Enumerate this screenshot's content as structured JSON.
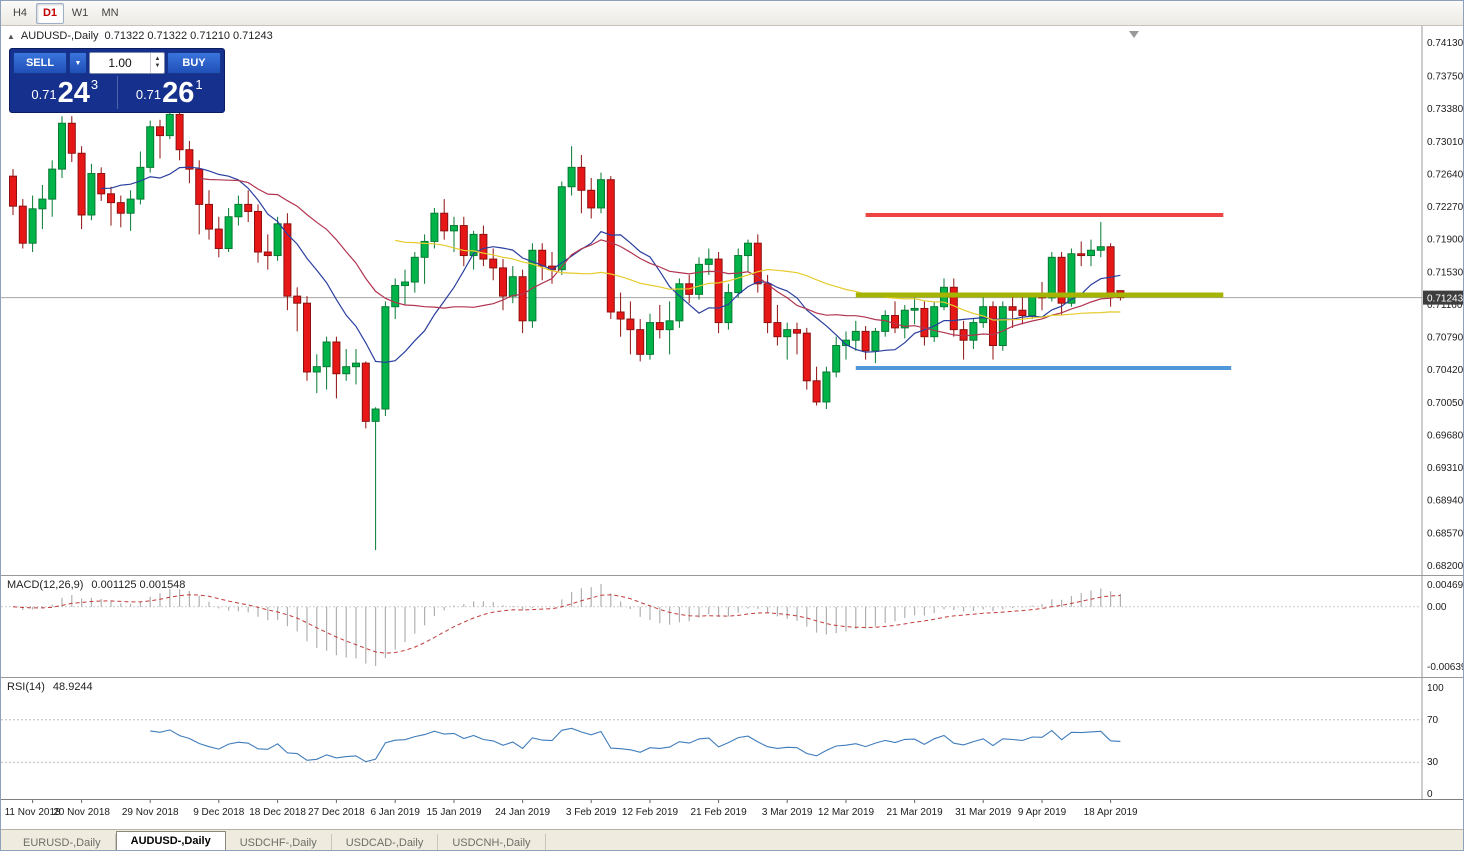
{
  "toolbar": {
    "buttons": [
      {
        "label": "H4",
        "active": false
      },
      {
        "label": "D1",
        "active": true
      },
      {
        "label": "W1",
        "active": false
      },
      {
        "label": "MN",
        "active": false
      }
    ]
  },
  "chart_header": {
    "symbol": "AUDUSD-,Daily",
    "ohlc_text": "0.71322 0.71322 0.71210 0.71243"
  },
  "icons": {
    "symbol_arrow": "▲",
    "dropdown_arrow": "▼",
    "spinner_up": "▲",
    "spinner_down": "▼"
  },
  "trade_panel": {
    "sell_label": "SELL",
    "buy_label": "BUY",
    "volume": "1.00",
    "bid": {
      "prefix": "0.71",
      "big": "24",
      "sup": "3"
    },
    "ask": {
      "prefix": "0.71",
      "big": "26",
      "sup": "1"
    }
  },
  "price_badge": "0.71243",
  "tabs": {
    "items": [
      {
        "label": "EURUSD-,Daily",
        "active": false
      },
      {
        "label": "AUDUSD-,Daily",
        "active": true
      },
      {
        "label": "USDCHF-,Daily",
        "active": false
      },
      {
        "label": "USDCAD-,Daily",
        "active": false
      },
      {
        "label": "USDCNH-,Daily",
        "active": false
      }
    ]
  },
  "chart_data": {
    "type": "candlestick",
    "title": "AUDUSD-,Daily",
    "current_price": 0.71243,
    "price_axis": {
      "max": 0.7413,
      "min": 0.682,
      "labels": [
        "0.74130",
        "0.73750",
        "0.73380",
        "0.73010",
        "0.72640",
        "0.72270",
        "0.71900",
        "0.71530",
        "0.71160",
        "0.70790",
        "0.70420",
        "0.70050",
        "0.69680",
        "0.69310",
        "0.68940",
        "0.68570",
        "0.68200"
      ]
    },
    "candles": [
      [
        0.7262,
        0.727,
        0.7218,
        0.7228
      ],
      [
        0.7228,
        0.7236,
        0.718,
        0.7186
      ],
      [
        0.7186,
        0.724,
        0.7176,
        0.7225
      ],
      [
        0.7225,
        0.7252,
        0.7202,
        0.7236
      ],
      [
        0.7236,
        0.728,
        0.7216,
        0.727
      ],
      [
        0.727,
        0.733,
        0.726,
        0.7322
      ],
      [
        0.7322,
        0.733,
        0.7278,
        0.7288
      ],
      [
        0.7288,
        0.7296,
        0.7202,
        0.7218
      ],
      [
        0.7218,
        0.7276,
        0.7212,
        0.7265
      ],
      [
        0.7265,
        0.7272,
        0.7234,
        0.7242
      ],
      [
        0.7242,
        0.725,
        0.7206,
        0.7232
      ],
      [
        0.7232,
        0.724,
        0.7204,
        0.722
      ],
      [
        0.722,
        0.7246,
        0.72,
        0.7236
      ],
      [
        0.7236,
        0.729,
        0.723,
        0.7272
      ],
      [
        0.7272,
        0.7325,
        0.7266,
        0.7318
      ],
      [
        0.7318,
        0.7326,
        0.7282,
        0.7308
      ],
      [
        0.7308,
        0.7338,
        0.7304,
        0.7332
      ],
      [
        0.7332,
        0.7338,
        0.728,
        0.7292
      ],
      [
        0.7292,
        0.7302,
        0.7254,
        0.727
      ],
      [
        0.727,
        0.728,
        0.7196,
        0.723
      ],
      [
        0.723,
        0.7246,
        0.719,
        0.7202
      ],
      [
        0.7202,
        0.7216,
        0.717,
        0.718
      ],
      [
        0.718,
        0.7226,
        0.7176,
        0.7216
      ],
      [
        0.7216,
        0.724,
        0.7206,
        0.723
      ],
      [
        0.723,
        0.7246,
        0.721,
        0.7222
      ],
      [
        0.7222,
        0.723,
        0.7164,
        0.7176
      ],
      [
        0.7176,
        0.7196,
        0.7156,
        0.7172
      ],
      [
        0.7172,
        0.7216,
        0.7166,
        0.7208
      ],
      [
        0.7208,
        0.722,
        0.711,
        0.7126
      ],
      [
        0.7126,
        0.7136,
        0.7086,
        0.7118
      ],
      [
        0.7118,
        0.7126,
        0.703,
        0.704
      ],
      [
        0.704,
        0.706,
        0.7016,
        0.7046
      ],
      [
        0.7046,
        0.708,
        0.702,
        0.7074
      ],
      [
        0.7074,
        0.708,
        0.701,
        0.7038
      ],
      [
        0.7038,
        0.7066,
        0.703,
        0.7046
      ],
      [
        0.7046,
        0.7066,
        0.7026,
        0.705
      ],
      [
        0.705,
        0.7052,
        0.6976,
        0.6984
      ],
      [
        0.6984,
        0.7,
        0.6838,
        0.6998
      ],
      [
        0.6998,
        0.712,
        0.699,
        0.7114
      ],
      [
        0.7114,
        0.7146,
        0.71,
        0.7138
      ],
      [
        0.7138,
        0.7156,
        0.7116,
        0.7142
      ],
      [
        0.7142,
        0.7176,
        0.713,
        0.717
      ],
      [
        0.717,
        0.7196,
        0.714,
        0.7188
      ],
      [
        0.7188,
        0.7226,
        0.718,
        0.722
      ],
      [
        0.722,
        0.7236,
        0.719,
        0.72
      ],
      [
        0.72,
        0.7216,
        0.7176,
        0.7206
      ],
      [
        0.7206,
        0.7216,
        0.716,
        0.7172
      ],
      [
        0.7172,
        0.72,
        0.7156,
        0.7196
      ],
      [
        0.7196,
        0.7206,
        0.716,
        0.7168
      ],
      [
        0.7168,
        0.718,
        0.7144,
        0.7158
      ],
      [
        0.7158,
        0.7168,
        0.711,
        0.7126
      ],
      [
        0.7126,
        0.716,
        0.7118,
        0.7148
      ],
      [
        0.7148,
        0.7156,
        0.7084,
        0.7098
      ],
      [
        0.7098,
        0.7186,
        0.709,
        0.7178
      ],
      [
        0.7178,
        0.7186,
        0.7144,
        0.716
      ],
      [
        0.716,
        0.7176,
        0.714,
        0.7156
      ],
      [
        0.7156,
        0.7256,
        0.715,
        0.725
      ],
      [
        0.725,
        0.7296,
        0.724,
        0.7272
      ],
      [
        0.7272,
        0.7286,
        0.722,
        0.7246
      ],
      [
        0.7246,
        0.726,
        0.7214,
        0.7226
      ],
      [
        0.7226,
        0.7266,
        0.722,
        0.7258
      ],
      [
        0.7258,
        0.7262,
        0.71,
        0.7108
      ],
      [
        0.7108,
        0.713,
        0.708,
        0.71
      ],
      [
        0.71,
        0.712,
        0.706,
        0.7088
      ],
      [
        0.7088,
        0.71,
        0.7052,
        0.706
      ],
      [
        0.706,
        0.7106,
        0.7054,
        0.7096
      ],
      [
        0.7096,
        0.7116,
        0.7078,
        0.7088
      ],
      [
        0.7088,
        0.712,
        0.706,
        0.7098
      ],
      [
        0.7098,
        0.7146,
        0.709,
        0.714
      ],
      [
        0.714,
        0.715,
        0.7118,
        0.7128
      ],
      [
        0.7128,
        0.717,
        0.7122,
        0.7162
      ],
      [
        0.7162,
        0.718,
        0.715,
        0.7168
      ],
      [
        0.7168,
        0.7176,
        0.7084,
        0.7096
      ],
      [
        0.7096,
        0.714,
        0.7088,
        0.713
      ],
      [
        0.713,
        0.718,
        0.7124,
        0.7172
      ],
      [
        0.7172,
        0.719,
        0.7154,
        0.7186
      ],
      [
        0.7186,
        0.7196,
        0.713,
        0.714
      ],
      [
        0.714,
        0.715,
        0.7084,
        0.7096
      ],
      [
        0.7096,
        0.7116,
        0.707,
        0.708
      ],
      [
        0.708,
        0.7096,
        0.7054,
        0.7088
      ],
      [
        0.7088,
        0.7096,
        0.706,
        0.7084
      ],
      [
        0.7084,
        0.709,
        0.702,
        0.703
      ],
      [
        0.703,
        0.7046,
        0.7002,
        0.7006
      ],
      [
        0.7006,
        0.7046,
        0.6998,
        0.704
      ],
      [
        0.704,
        0.708,
        0.7034,
        0.707
      ],
      [
        0.707,
        0.7086,
        0.7054,
        0.7076
      ],
      [
        0.7076,
        0.7098,
        0.7064,
        0.7086
      ],
      [
        0.7086,
        0.7092,
        0.7054,
        0.7064
      ],
      [
        0.7064,
        0.709,
        0.705,
        0.7086
      ],
      [
        0.7086,
        0.711,
        0.708,
        0.7104
      ],
      [
        0.7104,
        0.712,
        0.7084,
        0.709
      ],
      [
        0.709,
        0.7116,
        0.7078,
        0.711
      ],
      [
        0.711,
        0.7126,
        0.7094,
        0.7112
      ],
      [
        0.7112,
        0.712,
        0.707,
        0.708
      ],
      [
        0.708,
        0.712,
        0.7074,
        0.7114
      ],
      [
        0.7114,
        0.7146,
        0.711,
        0.7136
      ],
      [
        0.7136,
        0.7146,
        0.708,
        0.7088
      ],
      [
        0.7088,
        0.7098,
        0.7054,
        0.7076
      ],
      [
        0.7076,
        0.71,
        0.7066,
        0.7096
      ],
      [
        0.7096,
        0.713,
        0.709,
        0.7114
      ],
      [
        0.7114,
        0.712,
        0.7054,
        0.707
      ],
      [
        0.707,
        0.712,
        0.7064,
        0.7114
      ],
      [
        0.7114,
        0.7126,
        0.709,
        0.711
      ],
      [
        0.711,
        0.7126,
        0.7094,
        0.7104
      ],
      [
        0.7104,
        0.713,
        0.71,
        0.7126
      ],
      [
        0.7126,
        0.7142,
        0.711,
        0.7124
      ],
      [
        0.7124,
        0.7176,
        0.712,
        0.717
      ],
      [
        0.717,
        0.7176,
        0.7104,
        0.7118
      ],
      [
        0.7118,
        0.718,
        0.7114,
        0.7174
      ],
      [
        0.7174,
        0.7188,
        0.716,
        0.7172
      ],
      [
        0.7172,
        0.719,
        0.716,
        0.7178
      ],
      [
        0.7178,
        0.721,
        0.717,
        0.7182
      ],
      [
        0.7182,
        0.7186,
        0.7114,
        0.7128
      ],
      [
        0.71322,
        0.71322,
        0.7121,
        0.71243
      ]
    ],
    "xticks": [
      {
        "i": 2,
        "label": "11 Nov 2018"
      },
      {
        "i": 7,
        "label": "20 Nov 2018"
      },
      {
        "i": 14,
        "label": "29 Nov 2018"
      },
      {
        "i": 21,
        "label": "9 Dec 2018"
      },
      {
        "i": 27,
        "label": "18 Dec 2018"
      },
      {
        "i": 33,
        "label": "27 Dec 2018"
      },
      {
        "i": 39,
        "label": "6 Jan 2019"
      },
      {
        "i": 45,
        "label": "15 Jan 2019"
      },
      {
        "i": 52,
        "label": "24 Jan 2019"
      },
      {
        "i": 59,
        "label": "3 Feb 2019"
      },
      {
        "i": 65,
        "label": "12 Feb 2019"
      },
      {
        "i": 72,
        "label": "21 Feb 2019"
      },
      {
        "i": 79,
        "label": "3 Mar 2019"
      },
      {
        "i": 85,
        "label": "12 Mar 2019"
      },
      {
        "i": 92,
        "label": "21 Mar 2019"
      },
      {
        "i": 99,
        "label": "31 Mar 2019"
      },
      {
        "i": 105,
        "label": "9 Apr 2019"
      },
      {
        "i": 112,
        "label": "18 Apr 2019"
      }
    ],
    "moving_averages": [
      {
        "period": 10,
        "color": "#2a3f9f"
      },
      {
        "period": 20,
        "color": "#b13450"
      },
      {
        "period": 40,
        "color": "#e6cb2d"
      }
    ],
    "hlines": [
      {
        "price": 0.7218,
        "start_index": 87,
        "end_index": 123.5,
        "color": "#ef4444",
        "thickness": 4
      },
      {
        "price": 0.71273,
        "start_index": 86,
        "end_index": 123.5,
        "color": "#a4b400",
        "thickness": 5
      },
      {
        "price": 0.70445,
        "start_index": 86,
        "end_index": 124.3,
        "color": "#4f97d9",
        "thickness": 4
      }
    ],
    "colors": {
      "up": "#00b44a",
      "up_border": "#067a33",
      "down": "#e81717",
      "down_border": "#8f0f0f",
      "macd_hist": "#b0b0b0",
      "macd_signal": "#c23b3b",
      "rsi_line": "#3f7cba",
      "current_price_line": "#a6a6a6",
      "badge_bg": "#3d3d3d"
    },
    "indicators": {
      "macd": {
        "label": "MACD(12,26,9)",
        "values": "0.001125 0.001548",
        "fast": 12,
        "slow": 26,
        "signal": 9,
        "scale_labels": [
          "0.004694",
          "0.00",
          "-0.006394"
        ]
      },
      "rsi": {
        "label": "RSI(14)",
        "value": "48.9244",
        "period": 14,
        "levels": [
          70,
          30
        ],
        "scale_labels": [
          "100",
          "70",
          "30",
          "0"
        ]
      }
    }
  }
}
